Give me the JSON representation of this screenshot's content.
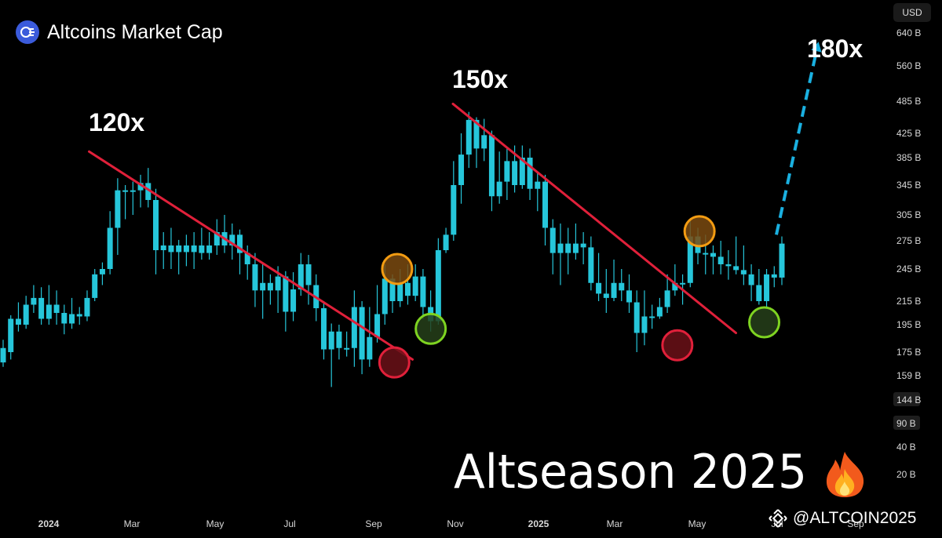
{
  "header": {
    "title": "Altcoins Market Cap",
    "currency": "USD",
    "logo_icon": "coins-stack-icon"
  },
  "watermark": {
    "text": "@ALTCOIN2025",
    "icon": "binance-diamond-icon"
  },
  "colors": {
    "up": "#26c6da",
    "down": "#26c6da",
    "trend": "#e0203a",
    "projection": "#1ab0e0",
    "marker_red": "#e0203a",
    "marker_orange": "#f39c12",
    "marker_green": "#7ed321"
  },
  "chart_data": {
    "type": "candlestick",
    "title": "Altcoins Market Cap",
    "headline": "Altseason 2025",
    "headline_emoji": "🔥",
    "y_ticks": [
      "640 B",
      "560 B",
      "485 B",
      "425 B",
      "385 B",
      "345 B",
      "305 B",
      "275 B",
      "245 B",
      "215 B",
      "195 B",
      "175 B",
      "159 B",
      "144 B",
      "90 B",
      "40 B",
      "20 B"
    ],
    "y_highlight": [
      "144 B",
      "90 B"
    ],
    "x_ticks": [
      "2024",
      "Mar",
      "May",
      "Jul",
      "Sep",
      "Nov",
      "2025",
      "Mar",
      "May",
      "Jul",
      "Sep"
    ],
    "x_bold": [
      "2024",
      "2025"
    ],
    "annotations": [
      "120x",
      "150x",
      "180x"
    ],
    "trendlines": [
      {
        "name": "2024 downtrend",
        "from": [
          "Feb 2024",
          395
        ],
        "to": [
          "Oct 2024",
          170
        ]
      },
      {
        "name": "2025 downtrend",
        "from": [
          "Nov 2024",
          480
        ],
        "to": [
          "Jun 2025",
          189
        ]
      }
    ],
    "projection": {
      "from": [
        "Jul 2025",
        282
      ],
      "to": [
        "Aug 2025",
        600
      ]
    },
    "markers": [
      {
        "color": "orange",
        "date": "Sep 2024",
        "value": 245
      },
      {
        "color": "red",
        "date": "Sep 2024",
        "value": 168
      },
      {
        "color": "green",
        "date": "Oct 2024",
        "value": 192
      },
      {
        "color": "red",
        "date": "Apr 2025",
        "value": 180
      },
      {
        "color": "orange",
        "date": "May 2025",
        "value": 286
      },
      {
        "color": "green",
        "date": "Jun 2025",
        "value": 197
      }
    ],
    "candles": [
      [
        168,
        178,
        184,
        165
      ],
      [
        175,
        200,
        203,
        170
      ],
      [
        200,
        195,
        214,
        190
      ],
      [
        195,
        212,
        220,
        192
      ],
      [
        212,
        218,
        230,
        205
      ],
      [
        218,
        200,
        228,
        195
      ],
      [
        200,
        212,
        230,
        195
      ],
      [
        212,
        205,
        225,
        195
      ],
      [
        205,
        196,
        212,
        188
      ],
      [
        196,
        204,
        218,
        192
      ],
      [
        204,
        202,
        210,
        195
      ],
      [
        202,
        218,
        225,
        198
      ],
      [
        218,
        240,
        245,
        215
      ],
      [
        240,
        245,
        252,
        230
      ],
      [
        245,
        290,
        310,
        240
      ],
      [
        290,
        338,
        355,
        260
      ],
      [
        338,
        338,
        345,
        300
      ],
      [
        338,
        338,
        350,
        305
      ],
      [
        338,
        348,
        360,
        315
      ],
      [
        348,
        325,
        370,
        315
      ],
      [
        325,
        265,
        340,
        240
      ],
      [
        265,
        270,
        285,
        245
      ],
      [
        270,
        263,
        290,
        245
      ],
      [
        263,
        270,
        276,
        240
      ],
      [
        270,
        263,
        282,
        248
      ],
      [
        263,
        270,
        285,
        245
      ],
      [
        270,
        262,
        290,
        255
      ],
      [
        262,
        270,
        285,
        255
      ],
      [
        270,
        285,
        300,
        260
      ],
      [
        285,
        270,
        305,
        262
      ],
      [
        270,
        282,
        295,
        255
      ],
      [
        282,
        262,
        288,
        240
      ],
      [
        262,
        250,
        270,
        235
      ],
      [
        250,
        225,
        262,
        210
      ],
      [
        225,
        232,
        250,
        200
      ],
      [
        232,
        225,
        240,
        212
      ],
      [
        225,
        238,
        248,
        205
      ],
      [
        238,
        206,
        243,
        190
      ],
      [
        206,
        226,
        242,
        198
      ],
      [
        226,
        250,
        262,
        220
      ],
      [
        250,
        230,
        260,
        212
      ],
      [
        230,
        209,
        240,
        198
      ],
      [
        209,
        177,
        215,
        170
      ],
      [
        177,
        190,
        196,
        152
      ],
      [
        190,
        178,
        195,
        170
      ],
      [
        178,
        178,
        190,
        172
      ],
      [
        178,
        210,
        225,
        165
      ],
      [
        210,
        170,
        215,
        160
      ],
      [
        170,
        186,
        210,
        165
      ],
      [
        186,
        204,
        230,
        182
      ],
      [
        204,
        236,
        250,
        195
      ],
      [
        236,
        215,
        240,
        205
      ],
      [
        215,
        232,
        245,
        210
      ],
      [
        232,
        220,
        250,
        212
      ],
      [
        220,
        238,
        250,
        215
      ],
      [
        238,
        210,
        245,
        200
      ],
      [
        210,
        198,
        225,
        190
      ],
      [
        198,
        265,
        278,
        195
      ],
      [
        265,
        282,
        290,
        262
      ],
      [
        282,
        345,
        380,
        275
      ],
      [
        345,
        390,
        425,
        320
      ],
      [
        390,
        450,
        465,
        370
      ],
      [
        450,
        400,
        455,
        370
      ],
      [
        400,
        422,
        452,
        380
      ],
      [
        422,
        330,
        430,
        310
      ],
      [
        330,
        350,
        395,
        320
      ],
      [
        350,
        380,
        400,
        325
      ],
      [
        380,
        345,
        405,
        335
      ],
      [
        345,
        385,
        405,
        340
      ],
      [
        385,
        340,
        400,
        325
      ],
      [
        340,
        350,
        365,
        310
      ],
      [
        350,
        290,
        360,
        270
      ],
      [
        290,
        262,
        300,
        240
      ],
      [
        262,
        272,
        295,
        230
      ],
      [
        272,
        262,
        290,
        240
      ],
      [
        262,
        272,
        295,
        255
      ],
      [
        272,
        268,
        285,
        250
      ],
      [
        268,
        232,
        280,
        225
      ],
      [
        232,
        222,
        262,
        215
      ],
      [
        222,
        218,
        245,
        205
      ],
      [
        218,
        232,
        255,
        215
      ],
      [
        232,
        225,
        245,
        215
      ],
      [
        225,
        214,
        240,
        205
      ],
      [
        214,
        189,
        225,
        175
      ],
      [
        189,
        202,
        225,
        180
      ],
      [
        202,
        202,
        212,
        192
      ],
      [
        202,
        210,
        218,
        200
      ],
      [
        210,
        225,
        240,
        205
      ],
      [
        225,
        232,
        250,
        220
      ],
      [
        232,
        232,
        240,
        212
      ],
      [
        232,
        280,
        300,
        228
      ],
      [
        280,
        262,
        290,
        250
      ],
      [
        262,
        262,
        282,
        240
      ],
      [
        262,
        258,
        270,
        240
      ],
      [
        258,
        250,
        275,
        240
      ],
      [
        250,
        248,
        265,
        235
      ],
      [
        248,
        244,
        280,
        240
      ],
      [
        244,
        240,
        270,
        230
      ],
      [
        240,
        230,
        250,
        215
      ],
      [
        230,
        215,
        245,
        212
      ],
      [
        215,
        240,
        245,
        210
      ],
      [
        240,
        237,
        248,
        228
      ],
      [
        237,
        272,
        280,
        230
      ]
    ]
  }
}
